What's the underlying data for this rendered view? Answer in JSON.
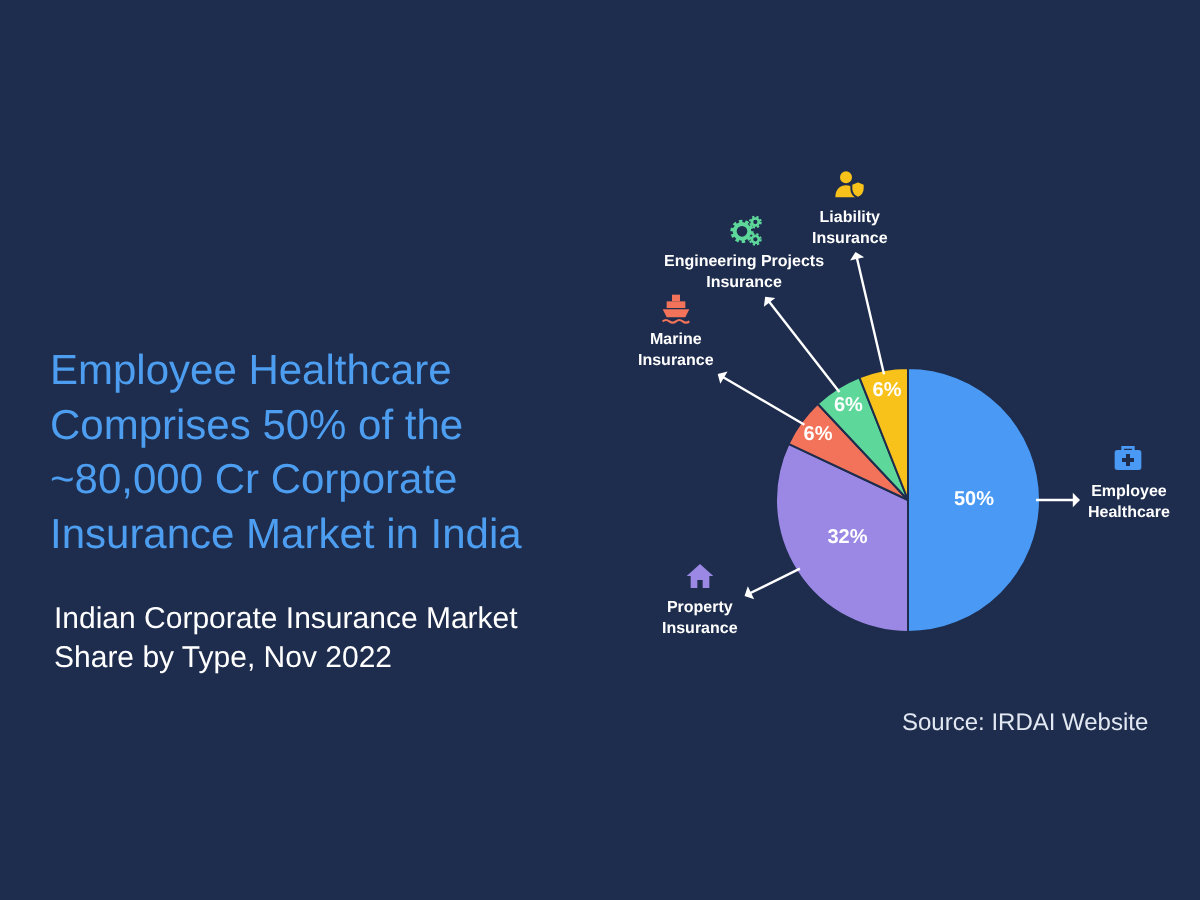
{
  "chart_data": {
    "type": "pie",
    "title": "Employee Healthcare Comprises 50% of the ~80,000 Cr Corporate Insurance Market in India",
    "subtitle": "Indian Corporate Insurance Market Share by Type, Nov 2022",
    "categories": [
      "Employee Healthcare",
      "Property Insurance",
      "Marine Insurance",
      "Engineering Projects Insurance",
      "Liability Insurance"
    ],
    "values": [
      50,
      32,
      6,
      6,
      6
    ],
    "colors": [
      "#4a9af5",
      "#9a88e4",
      "#f2735a",
      "#5ed89a",
      "#f8c21b"
    ],
    "value_labels": [
      "50%",
      "32%",
      "6%",
      "6%",
      "6%"
    ],
    "annotations": [
      "Source: IRDAI Website"
    ]
  }
}
